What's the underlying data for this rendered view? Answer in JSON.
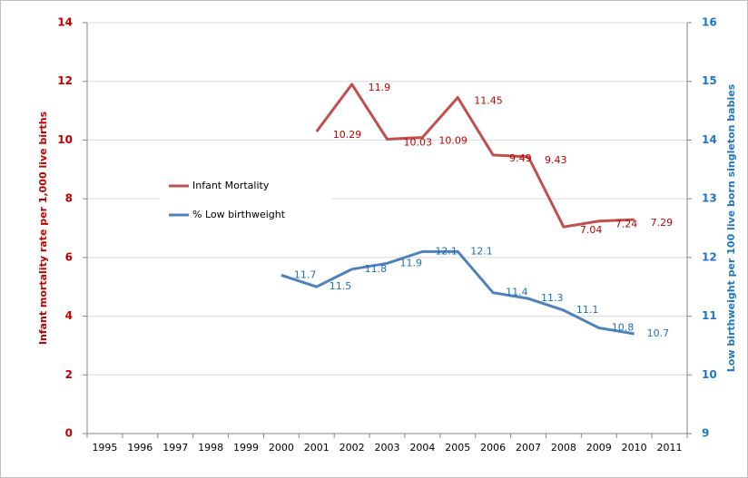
{
  "chart_data": {
    "type": "line",
    "categories": [
      "1995",
      "1996",
      "1997",
      "1998",
      "1999",
      "2000",
      "2001",
      "2002",
      "2003",
      "2004",
      "2005",
      "2006",
      "2007",
      "2008",
      "2009",
      "2010",
      "2011"
    ],
    "y_label": "Infant mortality rate per 1,000 live births",
    "y2_label": "Low birthweight per 100 live born singleton babies",
    "ylim": [
      0,
      14
    ],
    "yticks": [
      0,
      2,
      4,
      6,
      8,
      10,
      12,
      14
    ],
    "y2lim": [
      9,
      16
    ],
    "y2ticks": [
      9,
      10,
      11,
      12,
      13,
      14,
      15,
      16
    ],
    "grid": true,
    "y_color": "#c00000",
    "y2_color": "#1f77c4",
    "series": [
      {
        "name": "Infant Mortality",
        "color": "#c0504d",
        "label_color": "#c00000",
        "values": [
          null,
          null,
          null,
          null,
          null,
          null,
          10.29,
          11.9,
          10.03,
          10.09,
          11.45,
          9.49,
          9.43,
          7.04,
          7.24,
          7.29,
          null
        ]
      },
      {
        "name": "% Low birthweight",
        "color": "#4f81bd",
        "label_color": "#1f6fb4",
        "axis": "y2",
        "values": [
          null,
          null,
          null,
          null,
          null,
          11.7,
          11.5,
          11.8,
          11.9,
          12.1,
          12.1,
          11.4,
          11.3,
          11.1,
          10.8,
          10.7,
          null
        ]
      }
    ]
  }
}
